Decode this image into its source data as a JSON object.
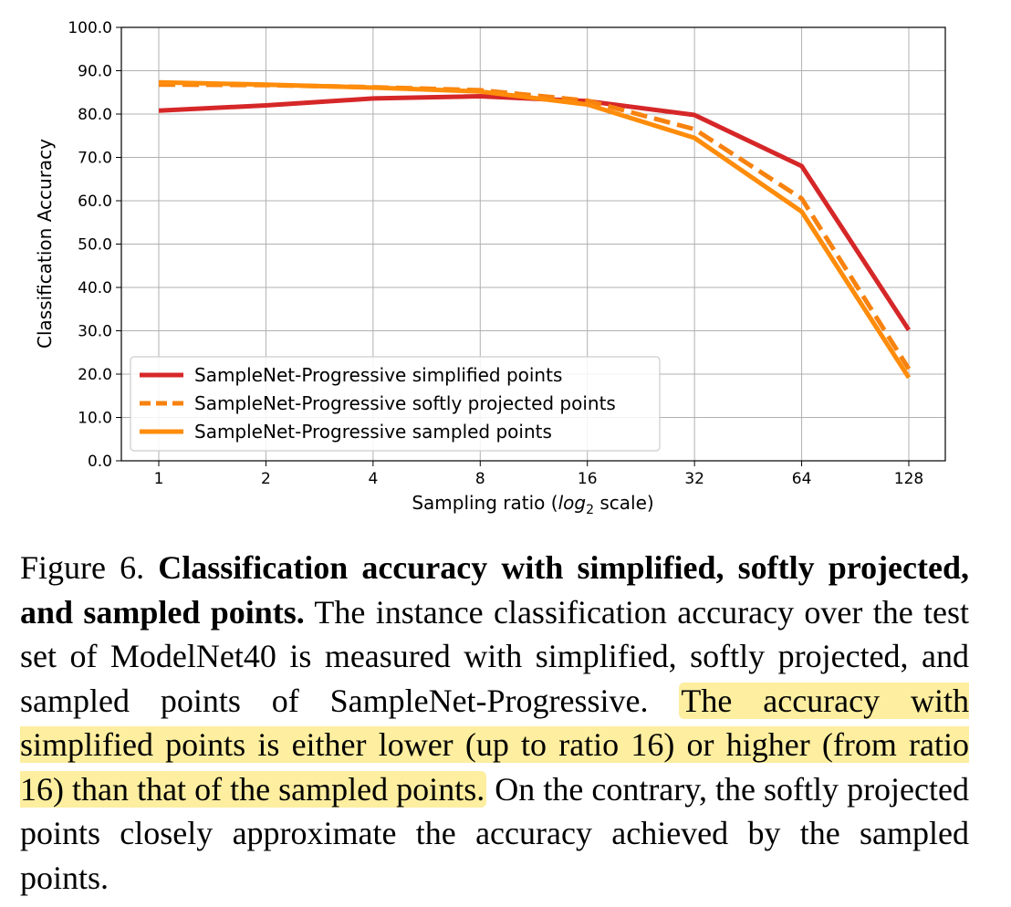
{
  "chart_data": {
    "type": "line",
    "title": "",
    "xlabel": "Sampling ratio (log2 scale)",
    "xlabel_prefix": "Sampling ratio (",
    "xlabel_italic": "log",
    "xlabel_sub": "2",
    "xlabel_suffix": " scale)",
    "ylabel": "Classification Accuracy",
    "x_scale": "log2",
    "categories": [
      "1",
      "2",
      "4",
      "8",
      "16",
      "32",
      "64",
      "128"
    ],
    "x": [
      1,
      2,
      4,
      8,
      16,
      32,
      64,
      128
    ],
    "ylim": [
      0,
      100
    ],
    "y_ticks": [
      "0.0",
      "10.0",
      "20.0",
      "30.0",
      "40.0",
      "50.0",
      "60.0",
      "70.0",
      "80.0",
      "90.0",
      "100.0"
    ],
    "grid": true,
    "legend_position": "lower-left",
    "series": [
      {
        "name": "SampleNet-Progressive simplified points",
        "color": "#d62728",
        "style": "solid",
        "values": [
          80.8,
          82.0,
          83.6,
          84.1,
          83.0,
          79.8,
          68.0,
          30.2
        ]
      },
      {
        "name": "SampleNet-Progressive softly projected points",
        "color": "#f7820f",
        "style": "dashed",
        "values": [
          86.8,
          86.7,
          86.2,
          85.5,
          83.1,
          76.5,
          60.5,
          21.2
        ]
      },
      {
        "name": "SampleNet-Progressive sampled points",
        "color": "#ff8c0a",
        "style": "solid",
        "values": [
          87.3,
          86.8,
          86.1,
          85.2,
          82.2,
          74.5,
          57.5,
          19.2
        ]
      }
    ]
  },
  "caption": {
    "figure_label": "Figure 6.",
    "bold_title": "Classification accuracy with simplified, softly projected, and sampled points.",
    "text_plain": "The instance classification accuracy over the test set of ModelNet40 is measured with simplified, softly projected, and sampled points of SampleNet-Progressive.",
    "text_highlighted": "The accuracy with simplified points is either lower (up to ratio 16) or higher (from ratio 16) than that of the sampled points.",
    "text_end": "On the contrary, the softly projected points closely approximate the accuracy achieved by the sampled points.",
    "highlight_color": "#fdeea0"
  }
}
